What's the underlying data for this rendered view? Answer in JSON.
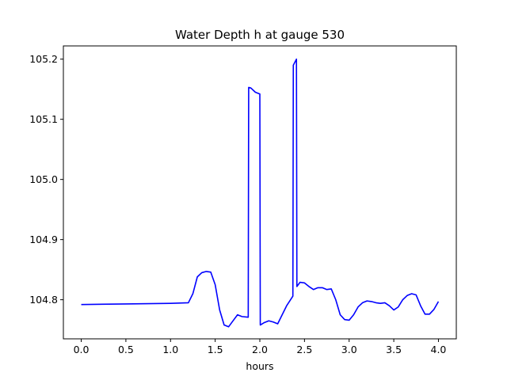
{
  "chart_data": {
    "type": "line",
    "title": "Water Depth h at gauge 530",
    "xlabel": "hours",
    "ylabel": "",
    "xlim": [
      -0.2,
      4.2
    ],
    "ylim": [
      104.735,
      105.222
    ],
    "x_ticks": [
      "0.0",
      "0.5",
      "1.0",
      "1.5",
      "2.0",
      "2.5",
      "3.0",
      "3.5",
      "4.0"
    ],
    "y_ticks": [
      "104.8",
      "104.9",
      "105.0",
      "105.1",
      "105.2"
    ],
    "x_tick_values": [
      0.0,
      0.5,
      1.0,
      1.5,
      2.0,
      2.5,
      3.0,
      3.5,
      4.0
    ],
    "y_tick_values": [
      104.8,
      104.9,
      105.0,
      105.1,
      105.2
    ],
    "grid": false,
    "line_color": "#0000ff",
    "series": [
      {
        "name": "",
        "x": [
          0.0,
          0.5,
          1.0,
          1.2,
          1.25,
          1.3,
          1.35,
          1.4,
          1.45,
          1.5,
          1.55,
          1.6,
          1.65,
          1.7,
          1.75,
          1.8,
          1.87,
          1.875,
          1.9,
          1.95,
          2.0,
          2.005,
          2.05,
          2.1,
          2.15,
          2.2,
          2.25,
          2.3,
          2.37,
          2.375,
          2.41,
          2.415,
          2.45,
          2.5,
          2.55,
          2.6,
          2.65,
          2.7,
          2.75,
          2.8,
          2.85,
          2.9,
          2.95,
          3.0,
          3.05,
          3.1,
          3.15,
          3.2,
          3.25,
          3.3,
          3.35,
          3.4,
          3.45,
          3.5,
          3.55,
          3.6,
          3.65,
          3.7,
          3.75,
          3.8,
          3.85,
          3.9,
          3.95,
          4.0
        ],
        "y": [
          104.792,
          104.793,
          104.794,
          104.795,
          104.81,
          104.838,
          104.845,
          104.847,
          104.846,
          104.825,
          104.783,
          104.758,
          104.755,
          104.765,
          104.775,
          104.772,
          104.771,
          105.153,
          105.152,
          105.145,
          105.142,
          104.758,
          104.762,
          104.765,
          104.763,
          104.76,
          104.775,
          104.79,
          104.806,
          105.19,
          105.2,
          104.822,
          104.829,
          104.828,
          104.822,
          104.817,
          104.82,
          104.82,
          104.817,
          104.818,
          104.8,
          104.775,
          104.767,
          104.766,
          104.775,
          104.788,
          104.795,
          104.798,
          104.797,
          104.795,
          104.794,
          104.795,
          104.79,
          104.783,
          104.788,
          104.8,
          104.807,
          104.81,
          104.808,
          104.79,
          104.776,
          104.776,
          104.784,
          104.797
        ]
      }
    ]
  }
}
